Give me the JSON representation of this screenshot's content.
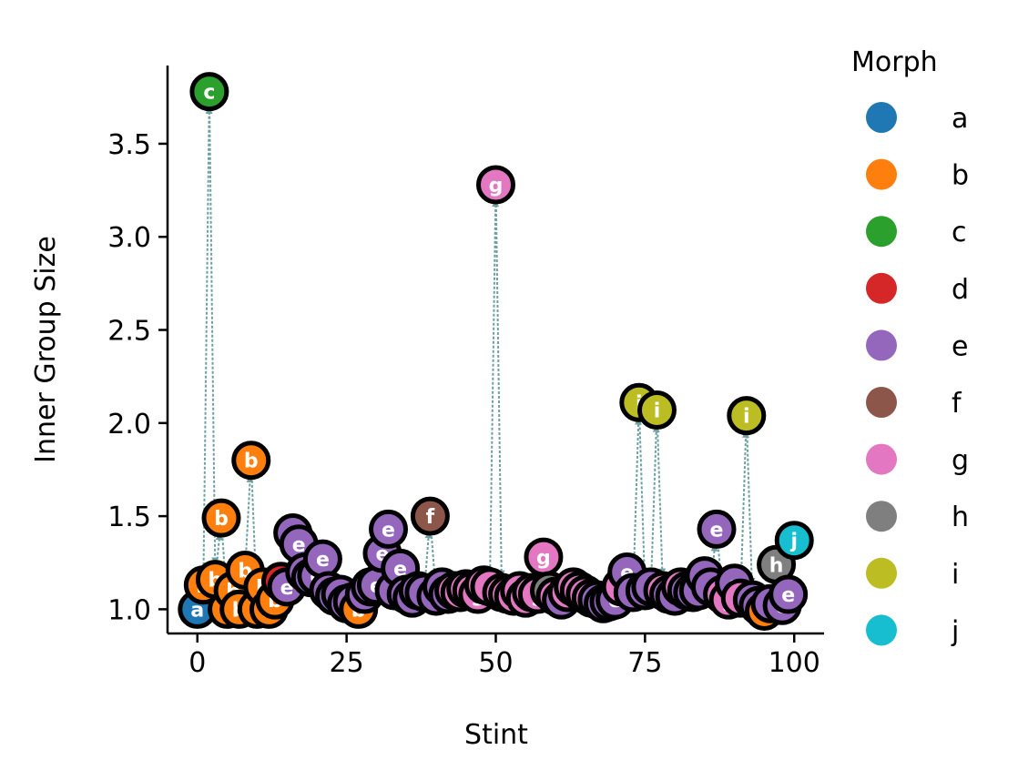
{
  "chart_data": {
    "type": "scatter",
    "xlabel": "Stint",
    "ylabel": "Inner Group Size",
    "xlim": [
      -5,
      105
    ],
    "ylim": [
      0.87,
      3.92
    ],
    "x_ticks": [
      0,
      25,
      50,
      75,
      100
    ],
    "x_tick_labels": [
      "0",
      "25",
      "50",
      "75",
      "100"
    ],
    "y_ticks": [
      1.0,
      1.5,
      2.0,
      2.5,
      3.0,
      3.5
    ],
    "y_tick_labels": [
      "1.0",
      "1.5",
      "2.0",
      "2.5",
      "3.0",
      "3.5"
    ],
    "grid": false,
    "legend": {
      "title": "Morph",
      "placement": "outside-right",
      "entries": [
        {
          "label": "a",
          "color": "#1f77b4"
        },
        {
          "label": "b",
          "color": "#ff7f0e"
        },
        {
          "label": "c",
          "color": "#2ca02c"
        },
        {
          "label": "d",
          "color": "#d62728"
        },
        {
          "label": "e",
          "color": "#9467bd"
        },
        {
          "label": "f",
          "color": "#8c564b"
        },
        {
          "label": "g",
          "color": "#e377c2"
        },
        {
          "label": "h",
          "color": "#7f7f7f"
        },
        {
          "label": "i",
          "color": "#bcbd22"
        },
        {
          "label": "j",
          "color": "#17becf"
        }
      ]
    },
    "arrow_color": "#6fa0a0",
    "points": [
      {
        "x": 0,
        "y": 1.0,
        "morph": "a"
      },
      {
        "x": 1,
        "y": 1.13,
        "morph": "b"
      },
      {
        "x": 2,
        "y": 3.78,
        "morph": "c"
      },
      {
        "x": 3,
        "y": 1.16,
        "morph": "b"
      },
      {
        "x": 4,
        "y": 1.49,
        "morph": "b"
      },
      {
        "x": 5,
        "y": 1.0,
        "morph": "b"
      },
      {
        "x": 6,
        "y": 1.1,
        "morph": "b"
      },
      {
        "x": 7,
        "y": 1.0,
        "morph": "b"
      },
      {
        "x": 8,
        "y": 1.21,
        "morph": "b"
      },
      {
        "x": 9,
        "y": 1.8,
        "morph": "b"
      },
      {
        "x": 10,
        "y": 1.0,
        "morph": "b"
      },
      {
        "x": 11,
        "y": 1.12,
        "morph": "b"
      },
      {
        "x": 12,
        "y": 1.0,
        "morph": "b"
      },
      {
        "x": 13,
        "y": 1.05,
        "morph": "b"
      },
      {
        "x": 14,
        "y": 1.15,
        "morph": "d"
      },
      {
        "x": 15,
        "y": 1.12,
        "morph": "e"
      },
      {
        "x": 16,
        "y": 1.41,
        "morph": "e"
      },
      {
        "x": 17,
        "y": 1.35,
        "morph": "e"
      },
      {
        "x": 18,
        "y": 1.2,
        "morph": "e"
      },
      {
        "x": 19,
        "y": 1.17,
        "morph": "e"
      },
      {
        "x": 20,
        "y": 1.18,
        "morph": "e"
      },
      {
        "x": 21,
        "y": 1.27,
        "morph": "e"
      },
      {
        "x": 22,
        "y": 1.1,
        "morph": "e"
      },
      {
        "x": 23,
        "y": 1.07,
        "morph": "e"
      },
      {
        "x": 24,
        "y": 1.08,
        "morph": "e"
      },
      {
        "x": 25,
        "y": 1.03,
        "morph": "e"
      },
      {
        "x": 26,
        "y": 1.04,
        "morph": "e"
      },
      {
        "x": 27,
        "y": 1.0,
        "morph": "b"
      },
      {
        "x": 28,
        "y": 1.08,
        "morph": "e"
      },
      {
        "x": 29,
        "y": 1.12,
        "morph": "e"
      },
      {
        "x": 30,
        "y": 1.13,
        "morph": "e"
      },
      {
        "x": 31,
        "y": 1.3,
        "morph": "e"
      },
      {
        "x": 32,
        "y": 1.43,
        "morph": "e"
      },
      {
        "x": 33,
        "y": 1.1,
        "morph": "e"
      },
      {
        "x": 34,
        "y": 1.22,
        "morph": "e"
      },
      {
        "x": 35,
        "y": 1.08,
        "morph": "e"
      },
      {
        "x": 36,
        "y": 1.06,
        "morph": "e"
      },
      {
        "x": 37,
        "y": 1.1,
        "morph": "e"
      },
      {
        "x": 38,
        "y": 1.09,
        "morph": "e"
      },
      {
        "x": 39,
        "y": 1.5,
        "morph": "f"
      },
      {
        "x": 40,
        "y": 1.07,
        "morph": "e"
      },
      {
        "x": 41,
        "y": 1.12,
        "morph": "e"
      },
      {
        "x": 42,
        "y": 1.08,
        "morph": "e"
      },
      {
        "x": 43,
        "y": 1.1,
        "morph": "g"
      },
      {
        "x": 44,
        "y": 1.09,
        "morph": "g"
      },
      {
        "x": 45,
        "y": 1.11,
        "morph": "g"
      },
      {
        "x": 46,
        "y": 1.1,
        "morph": "g"
      },
      {
        "x": 47,
        "y": 1.08,
        "morph": "g"
      },
      {
        "x": 48,
        "y": 1.13,
        "morph": "g"
      },
      {
        "x": 49,
        "y": 1.12,
        "morph": "g"
      },
      {
        "x": 50,
        "y": 3.28,
        "morph": "g"
      },
      {
        "x": 51,
        "y": 1.09,
        "morph": "g"
      },
      {
        "x": 52,
        "y": 1.08,
        "morph": "g"
      },
      {
        "x": 53,
        "y": 1.07,
        "morph": "g"
      },
      {
        "x": 54,
        "y": 1.1,
        "morph": "g"
      },
      {
        "x": 55,
        "y": 1.06,
        "morph": "g"
      },
      {
        "x": 56,
        "y": 1.09,
        "morph": "g"
      },
      {
        "x": 57,
        "y": 1.08,
        "morph": "g"
      },
      {
        "x": 58,
        "y": 1.28,
        "morph": "g"
      },
      {
        "x": 59,
        "y": 1.1,
        "morph": "h"
      },
      {
        "x": 60,
        "y": 1.07,
        "morph": "g"
      },
      {
        "x": 61,
        "y": 1.05,
        "morph": "e"
      },
      {
        "x": 62,
        "y": 1.09,
        "morph": "g"
      },
      {
        "x": 63,
        "y": 1.12,
        "morph": "g"
      },
      {
        "x": 64,
        "y": 1.1,
        "morph": "g"
      },
      {
        "x": 65,
        "y": 1.08,
        "morph": "g"
      },
      {
        "x": 66,
        "y": 1.06,
        "morph": "g"
      },
      {
        "x": 67,
        "y": 1.05,
        "morph": "e"
      },
      {
        "x": 68,
        "y": 1.03,
        "morph": "e"
      },
      {
        "x": 69,
        "y": 1.04,
        "morph": "e"
      },
      {
        "x": 70,
        "y": 1.05,
        "morph": "e"
      },
      {
        "x": 71,
        "y": 1.12,
        "morph": "g"
      },
      {
        "x": 72,
        "y": 1.2,
        "morph": "e"
      },
      {
        "x": 73,
        "y": 1.09,
        "morph": "e"
      },
      {
        "x": 74,
        "y": 2.11,
        "morph": "i"
      },
      {
        "x": 75,
        "y": 1.1,
        "morph": "e"
      },
      {
        "x": 76,
        "y": 1.12,
        "morph": "e"
      },
      {
        "x": 77,
        "y": 2.07,
        "morph": "i"
      },
      {
        "x": 78,
        "y": 1.1,
        "morph": "g"
      },
      {
        "x": 79,
        "y": 1.08,
        "morph": "e"
      },
      {
        "x": 80,
        "y": 1.07,
        "morph": "e"
      },
      {
        "x": 81,
        "y": 1.12,
        "morph": "g"
      },
      {
        "x": 82,
        "y": 1.1,
        "morph": "e"
      },
      {
        "x": 83,
        "y": 1.09,
        "morph": "e"
      },
      {
        "x": 84,
        "y": 1.1,
        "morph": "e"
      },
      {
        "x": 85,
        "y": 1.18,
        "morph": "e"
      },
      {
        "x": 86,
        "y": 1.12,
        "morph": "e"
      },
      {
        "x": 87,
        "y": 1.43,
        "morph": "e"
      },
      {
        "x": 88,
        "y": 1.08,
        "morph": "g"
      },
      {
        "x": 89,
        "y": 1.05,
        "morph": "g"
      },
      {
        "x": 90,
        "y": 1.14,
        "morph": "e"
      },
      {
        "x": 91,
        "y": 1.06,
        "morph": "g"
      },
      {
        "x": 92,
        "y": 2.04,
        "morph": "i"
      },
      {
        "x": 93,
        "y": 1.05,
        "morph": "e"
      },
      {
        "x": 94,
        "y": 1.02,
        "morph": "e"
      },
      {
        "x": 95,
        "y": 0.99,
        "morph": "b"
      },
      {
        "x": 96,
        "y": 1.03,
        "morph": "e"
      },
      {
        "x": 97,
        "y": 1.24,
        "morph": "h"
      },
      {
        "x": 98,
        "y": 1.02,
        "morph": "e"
      },
      {
        "x": 99,
        "y": 1.08,
        "morph": "e"
      },
      {
        "x": 100,
        "y": 1.37,
        "morph": "j"
      }
    ]
  }
}
